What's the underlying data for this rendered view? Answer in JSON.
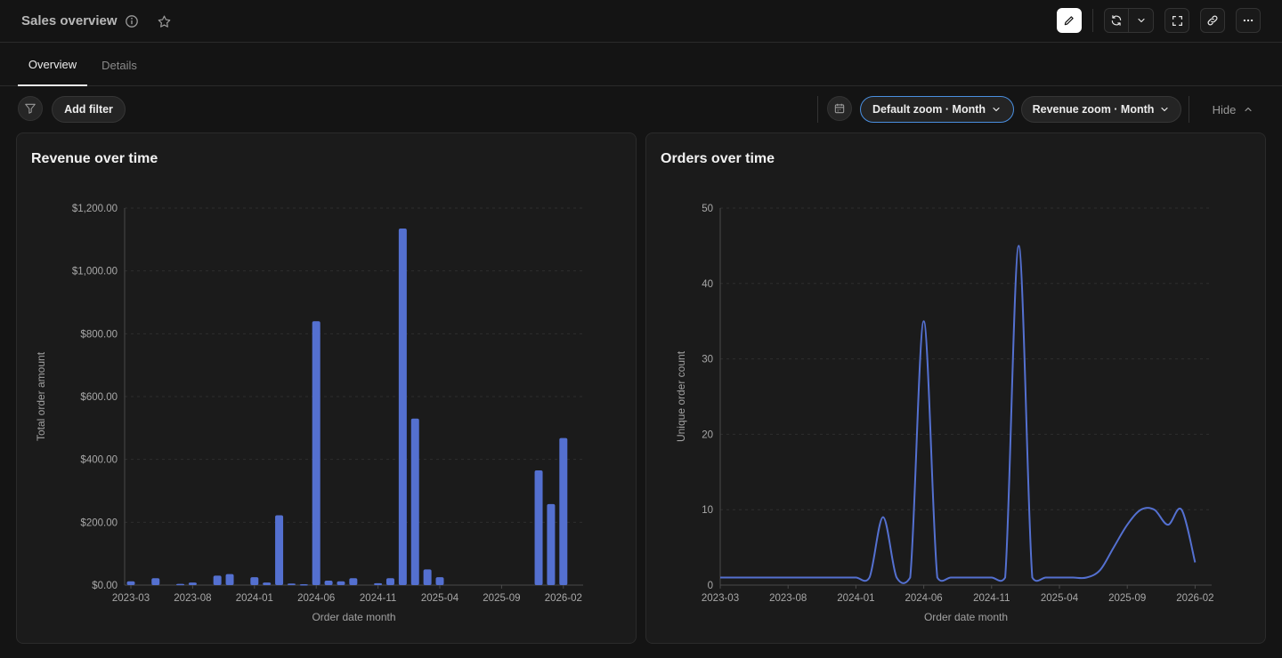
{
  "header": {
    "title": "Sales overview",
    "info_icon": "info-icon",
    "star_icon": "star-icon",
    "edit_icon": "pencil-icon",
    "refresh_icon": "refresh-icon",
    "dropdown_icon": "chevron-down-icon",
    "fullscreen_icon": "fullscreen-icon",
    "link_icon": "link-icon",
    "more_icon": "more-icon"
  },
  "tabs": [
    {
      "label": "Overview",
      "active": true
    },
    {
      "label": "Details",
      "active": false
    }
  ],
  "filters": {
    "add_filter_label": "Add filter",
    "default_zoom_label": "Default zoom · Month",
    "revenue_zoom_label": "Revenue zoom · Month",
    "hide_label": "Hide"
  },
  "colors": {
    "accent": "#5470d0",
    "focus": "#4a8fe0"
  },
  "charts": {
    "revenue": {
      "title": "Revenue over time"
    },
    "orders": {
      "title": "Orders over time"
    }
  },
  "chart_data": [
    {
      "type": "bar",
      "title": "Revenue over time",
      "xlabel": "Order date month",
      "ylabel": "Total order amount",
      "ylim": [
        0,
        1200
      ],
      "y_ticks": [
        0,
        200,
        400,
        600,
        800,
        1000,
        1200
      ],
      "y_tick_labels": [
        "$0.00",
        "$200.00",
        "$400.00",
        "$600.00",
        "$800.00",
        "$1,000.00",
        "$1,200.00"
      ],
      "x_tick_labels": [
        "2023-03",
        "2023-08",
        "2024-01",
        "2024-06",
        "2024-11",
        "2025-04",
        "2025-09",
        "2026-02"
      ],
      "categories": [
        "2023-03",
        "2023-04",
        "2023-05",
        "2023-06",
        "2023-07",
        "2023-08",
        "2023-09",
        "2023-10",
        "2023-11",
        "2023-12",
        "2024-01",
        "2024-02",
        "2024-03",
        "2024-04",
        "2024-05",
        "2024-06",
        "2024-07",
        "2024-08",
        "2024-09",
        "2024-10",
        "2024-11",
        "2024-12",
        "2025-01",
        "2025-02",
        "2025-03",
        "2025-04",
        "2025-05",
        "2025-06",
        "2025-07",
        "2025-08",
        "2025-09",
        "2025-10",
        "2025-11",
        "2025-12",
        "2026-01",
        "2026-02"
      ],
      "values": [
        12,
        0,
        22,
        0,
        4,
        8,
        0,
        30,
        35,
        0,
        25,
        8,
        222,
        5,
        3,
        840,
        14,
        12,
        22,
        0,
        6,
        22,
        1135,
        530,
        50,
        25,
        0,
        0,
        0,
        0,
        0,
        0,
        0,
        365,
        258,
        468
      ],
      "grid": true
    },
    {
      "type": "line",
      "title": "Orders over time",
      "xlabel": "Order date month",
      "ylabel": "Unique order count",
      "ylim": [
        0,
        50
      ],
      "y_ticks": [
        0,
        10,
        20,
        30,
        40,
        50
      ],
      "x_tick_labels": [
        "2023-03",
        "2023-08",
        "2024-01",
        "2024-06",
        "2024-11",
        "2025-04",
        "2025-09",
        "2026-02"
      ],
      "x": [
        "2023-03",
        "2023-04",
        "2023-05",
        "2023-06",
        "2023-07",
        "2023-08",
        "2023-09",
        "2023-10",
        "2023-11",
        "2023-12",
        "2024-01",
        "2024-02",
        "2024-03",
        "2024-04",
        "2024-05",
        "2024-06",
        "2024-07",
        "2024-08",
        "2024-09",
        "2024-10",
        "2024-11",
        "2024-12",
        "2025-01",
        "2025-02",
        "2025-03",
        "2025-04",
        "2025-05",
        "2025-06",
        "2025-07",
        "2025-08",
        "2025-09",
        "2025-10",
        "2025-11",
        "2025-12",
        "2026-01",
        "2026-02"
      ],
      "values": [
        1,
        1,
        1,
        1,
        1,
        1,
        1,
        1,
        1,
        1,
        1,
        1,
        9,
        1,
        1,
        35,
        1,
        1,
        1,
        1,
        1,
        1,
        45,
        1,
        1,
        1,
        1,
        1,
        2,
        5,
        8,
        10,
        10,
        8,
        10,
        3
      ],
      "grid": true
    }
  ]
}
